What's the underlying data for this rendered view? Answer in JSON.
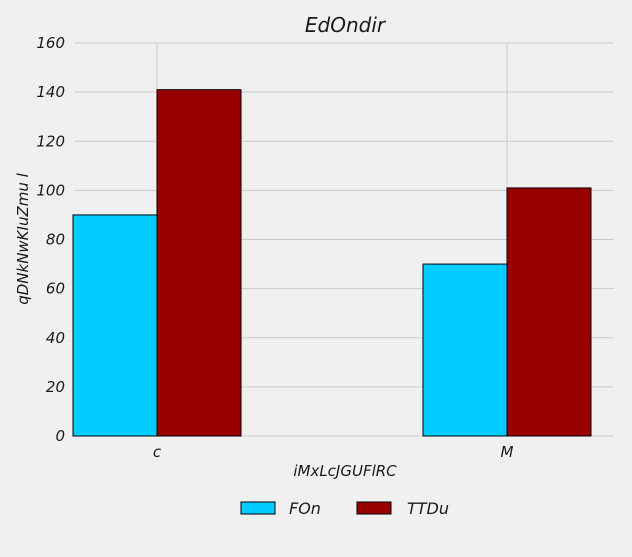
{
  "chart_data": {
    "type": "bar",
    "title": "EdOndir",
    "xlabel": "iMxLcJGUFlRC",
    "ylabel": "qDNkNwKIuZmu l",
    "categories": [
      "c",
      "M"
    ],
    "series": [
      {
        "name": "FOn",
        "color": "#00ccff",
        "values": [
          90,
          70
        ]
      },
      {
        "name": "TTDu",
        "color": "#990000",
        "values": [
          141,
          101
        ]
      }
    ],
    "ylim": [
      0,
      160
    ],
    "yticks": [
      "0",
      "20",
      "40",
      "60",
      "80",
      "100",
      "120",
      "140",
      "160"
    ],
    "grid": true,
    "legend_position": "bottom"
  }
}
